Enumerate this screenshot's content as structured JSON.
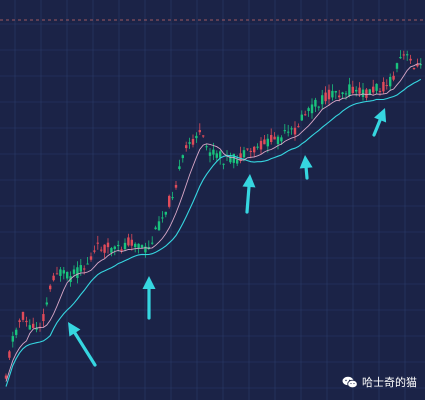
{
  "chart_data": {
    "type": "candlestick",
    "series": [
      {
        "name": "",
        "kind": "candles",
        "values": []
      },
      {
        "name": "",
        "kind": "moving-average",
        "color": "#36d6e0"
      },
      {
        "name": "",
        "kind": "moving-average",
        "color": "#d9a8c8"
      }
    ],
    "axis_labels": "none",
    "grid": true,
    "legend": "none",
    "annotations": [
      {
        "type": "arrow-up",
        "color": "#36d6e0"
      },
      {
        "type": "arrow-up",
        "color": "#36d6e0"
      },
      {
        "type": "arrow-up",
        "color": "#36d6e0"
      },
      {
        "type": "arrow-up",
        "color": "#36d6e0"
      },
      {
        "type": "arrow-up",
        "color": "#36d6e0"
      }
    ],
    "reference_line": {
      "style": "dashed",
      "color": "#c96b6b"
    }
  },
  "watermark": {
    "text": "哈士奇的猫",
    "icon": "wechat-icon"
  },
  "colors": {
    "background": "#1b2347",
    "grid": "#2a3b6a",
    "up": "#19c37d",
    "down": "#e04b5a",
    "ma_fast": "#36d6e0",
    "ma_slow": "#d9a8c8",
    "arrow": "#36d6e0"
  }
}
